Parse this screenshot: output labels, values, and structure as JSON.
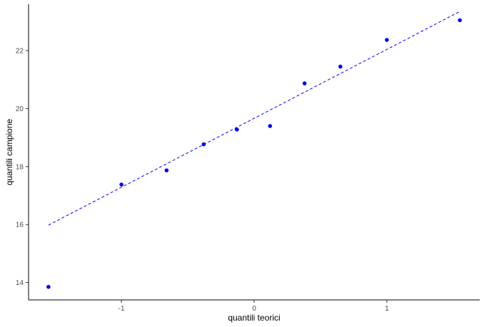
{
  "chart_data": {
    "type": "scatter",
    "xlabel": "quantili teorici",
    "ylabel": "quantili campione",
    "xlim": [
      -1.7,
      1.7
    ],
    "ylim": [
      13.4,
      23.6
    ],
    "x_ticks": [
      -1,
      0,
      1
    ],
    "y_ticks": [
      14,
      16,
      18,
      20,
      22
    ],
    "x_tick_labels": [
      "-1",
      "0",
      "1"
    ],
    "y_tick_labels": [
      "14",
      "16",
      "18",
      "20",
      "22"
    ],
    "grid": false,
    "series": [
      {
        "type": "scatter",
        "color": "#0000ff",
        "points": [
          {
            "x": -1.55,
            "y": 13.85
          },
          {
            "x": -1.0,
            "y": 17.38
          },
          {
            "x": -0.66,
            "y": 17.87
          },
          {
            "x": -0.38,
            "y": 18.77
          },
          {
            "x": -0.13,
            "y": 19.28
          },
          {
            "x": 0.12,
            "y": 19.4
          },
          {
            "x": 0.38,
            "y": 20.87
          },
          {
            "x": 0.65,
            "y": 21.45
          },
          {
            "x": 1.0,
            "y": 22.37
          },
          {
            "x": 1.55,
            "y": 23.05
          }
        ]
      },
      {
        "type": "line",
        "style": "dashed",
        "color": "#0000ff",
        "points": [
          {
            "x": -1.55,
            "y": 15.98
          },
          {
            "x": 1.55,
            "y": 23.35
          }
        ]
      }
    ]
  }
}
